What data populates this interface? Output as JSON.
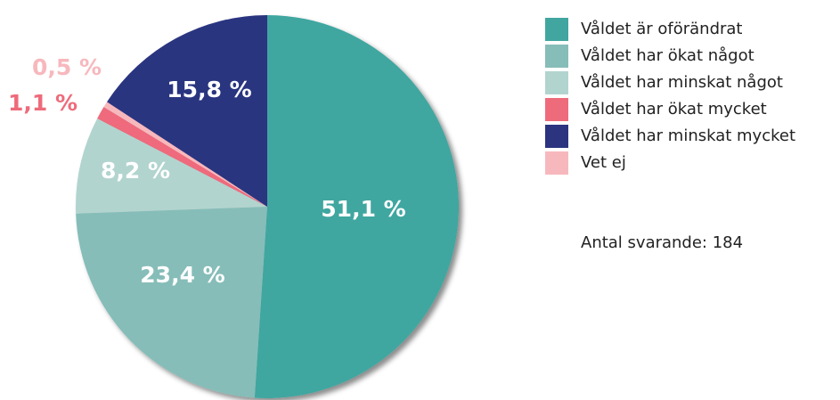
{
  "chart_data": {
    "type": "pie",
    "series": [
      {
        "name": "Våldet är oförändrat",
        "color": "#41a6a0",
        "values": [
          51.1
        ],
        "value_labels": [
          "51,1 %"
        ]
      },
      {
        "name": "Våldet har ökat något",
        "color": "#86bdb8",
        "values": [
          23.4
        ],
        "value_labels": [
          "23,4 %"
        ]
      },
      {
        "name": "Våldet har minskat något",
        "color": "#b2d4cf",
        "values": [
          8.2
        ],
        "value_labels": [
          "8,2 %"
        ]
      },
      {
        "name": "Våldet har ökat mycket",
        "color": "#ee6b7b",
        "values": [
          1.1
        ],
        "value_labels": [
          "1,1 %"
        ]
      },
      {
        "name": "Våldet har minskat mycket",
        "color": "#2c3480",
        "values": [
          15.8
        ],
        "value_labels": [
          "15,8 %"
        ]
      },
      {
        "name": "Vet ej",
        "color": "#f7b8bd",
        "values": [
          0.5
        ],
        "value_labels": [
          "0,5 %"
        ]
      }
    ],
    "annotation": "Antal svarande: 184"
  }
}
